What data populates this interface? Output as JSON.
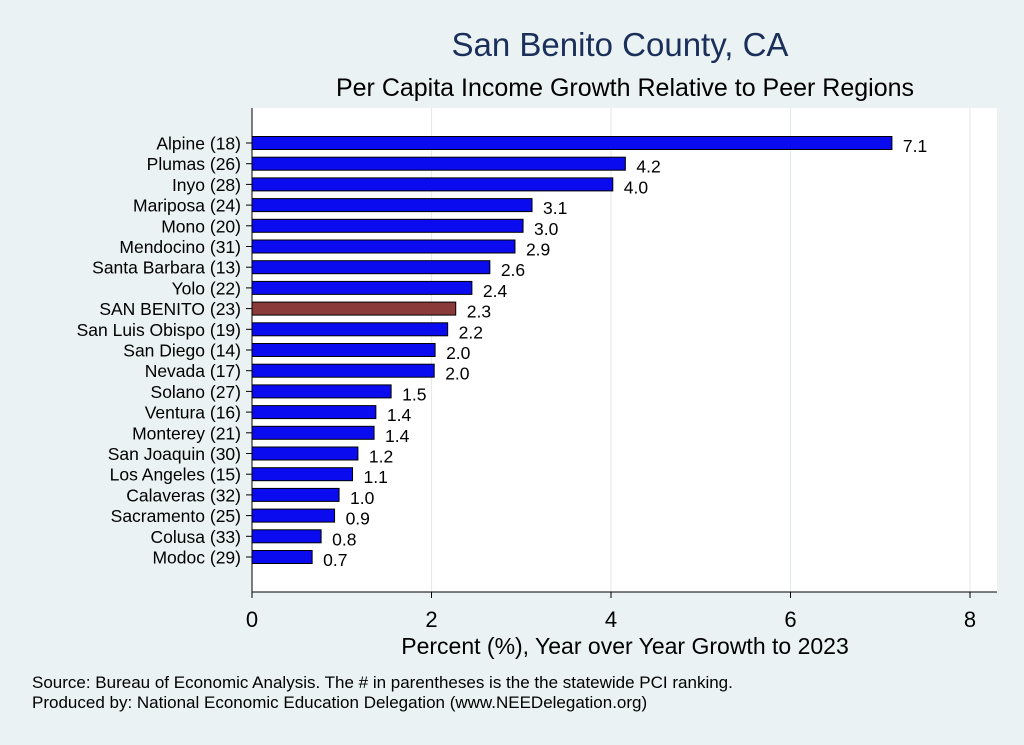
{
  "chart_data": {
    "type": "bar",
    "orientation": "horizontal",
    "title": "San Benito County, CA",
    "subtitle": "Per Capita Income Growth Relative to Peer Regions",
    "xlabel": "Percent (%), Year over Year Growth to 2023",
    "ylabel": "",
    "xlim": [
      0,
      8.3
    ],
    "xticks": [
      0,
      2,
      4,
      6,
      8
    ],
    "categories": [
      "Alpine (18)",
      "Plumas (26)",
      "Inyo (28)",
      "Mariposa (24)",
      "Mono (20)",
      "Mendocino (31)",
      "Santa Barbara (13)",
      "Yolo (22)",
      "SAN BENITO (23)",
      "San Luis Obispo (19)",
      "San Diego (14)",
      "Nevada (17)",
      "Solano (27)",
      "Ventura (16)",
      "Monterey (21)",
      "San Joaquin (30)",
      "Los Angeles (15)",
      "Calaveras (32)",
      "Sacramento (25)",
      "Colusa (33)",
      "Modoc (29)"
    ],
    "values": [
      7.13,
      4.16,
      4.02,
      3.12,
      3.02,
      2.93,
      2.65,
      2.45,
      2.27,
      2.18,
      2.04,
      2.03,
      1.55,
      1.38,
      1.36,
      1.18,
      1.12,
      0.97,
      0.92,
      0.77,
      0.67
    ],
    "value_labels": [
      "7.1",
      "4.2",
      "4.0",
      "3.1",
      "3.0",
      "2.9",
      "2.6",
      "2.4",
      "2.3",
      "2.2",
      "2.0",
      "2.0",
      "1.5",
      "1.4",
      "1.4",
      "1.2",
      "1.1",
      "1.0",
      "0.9",
      "0.8",
      "0.7"
    ],
    "highlight_index": 8,
    "colors": {
      "bar": "#0b0bf0",
      "highlight": "#8b3a3a",
      "plot_background": "#ffffff",
      "page_background": "#eaf2f3",
      "title": "#1a2f5a"
    },
    "grid": true
  },
  "notes": {
    "source": "Source: Bureau of Economic Analysis. The # in parentheses is the the statewide PCI ranking.",
    "produced_by": "Produced by: National Economic Education Delegation (www.NEEDelegation.org)"
  }
}
